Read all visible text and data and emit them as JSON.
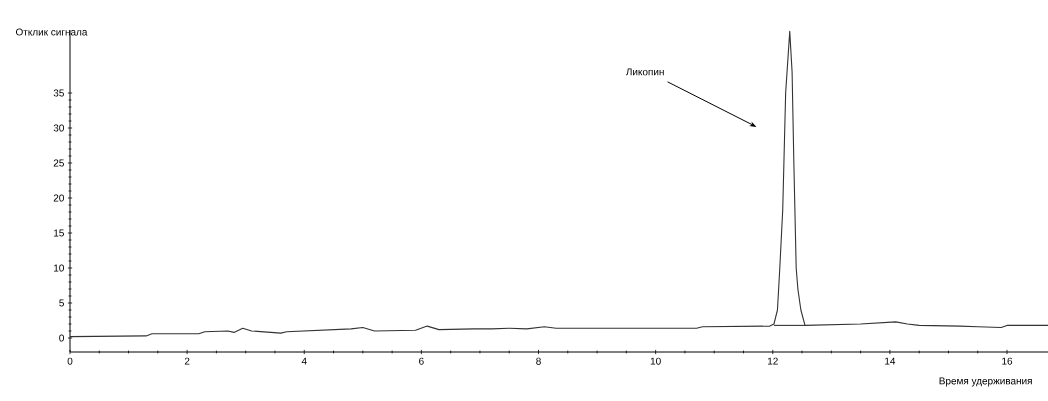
{
  "chart_data": {
    "type": "line",
    "xlabel": "Время удерживания",
    "ylabel": "Отклик сигнала",
    "annotations": [
      "Ликопин"
    ],
    "series": [
      {
        "color": "#333333",
        "x": [
          0,
          1.3,
          1.4,
          2.2,
          2.3,
          2.7,
          2.8,
          2.95,
          3.1,
          3.6,
          3.7,
          4.8,
          5.0,
          5.2,
          5.9,
          6.1,
          6.3,
          6.9,
          7.2,
          7.5,
          7.8,
          8.1,
          8.3,
          10.7,
          10.8,
          11.95,
          12.02,
          12.08,
          12.12,
          12.17,
          12.22,
          12.29,
          12.33,
          12.36,
          12.4,
          12.43,
          12.48,
          12.55,
          13.5,
          14.1,
          14.3,
          14.5,
          15.2,
          15.5,
          15.9,
          16.0,
          16.7
        ],
        "values": [
          0.2,
          0.3,
          0.6,
          0.6,
          0.9,
          1.0,
          0.8,
          1.4,
          1.0,
          0.7,
          0.9,
          1.3,
          1.5,
          1.0,
          1.1,
          1.7,
          1.2,
          1.3,
          1.3,
          1.4,
          1.3,
          1.6,
          1.4,
          1.4,
          1.6,
          1.7,
          2.0,
          4.0,
          10,
          18.3,
          35,
          43.8,
          38,
          25,
          10,
          6.9,
          4.0,
          1.8,
          2.0,
          2.3,
          2.0,
          1.8,
          1.7,
          1.6,
          1.5,
          1.8,
          1.8
        ]
      },
      {
        "color": "#333333",
        "x": [
          12.02,
          12.55
        ],
        "values": [
          1.8,
          1.8
        ]
      }
    ],
    "xlim": [
      0,
      16.7
    ],
    "ylim": [
      -2,
      44
    ],
    "xticks": [
      0,
      2,
      4,
      6,
      8,
      10,
      12,
      14,
      16
    ],
    "yticks": [
      0,
      5,
      10,
      15,
      20,
      25,
      30,
      35
    ],
    "marker": "none",
    "line_style": "solid"
  }
}
